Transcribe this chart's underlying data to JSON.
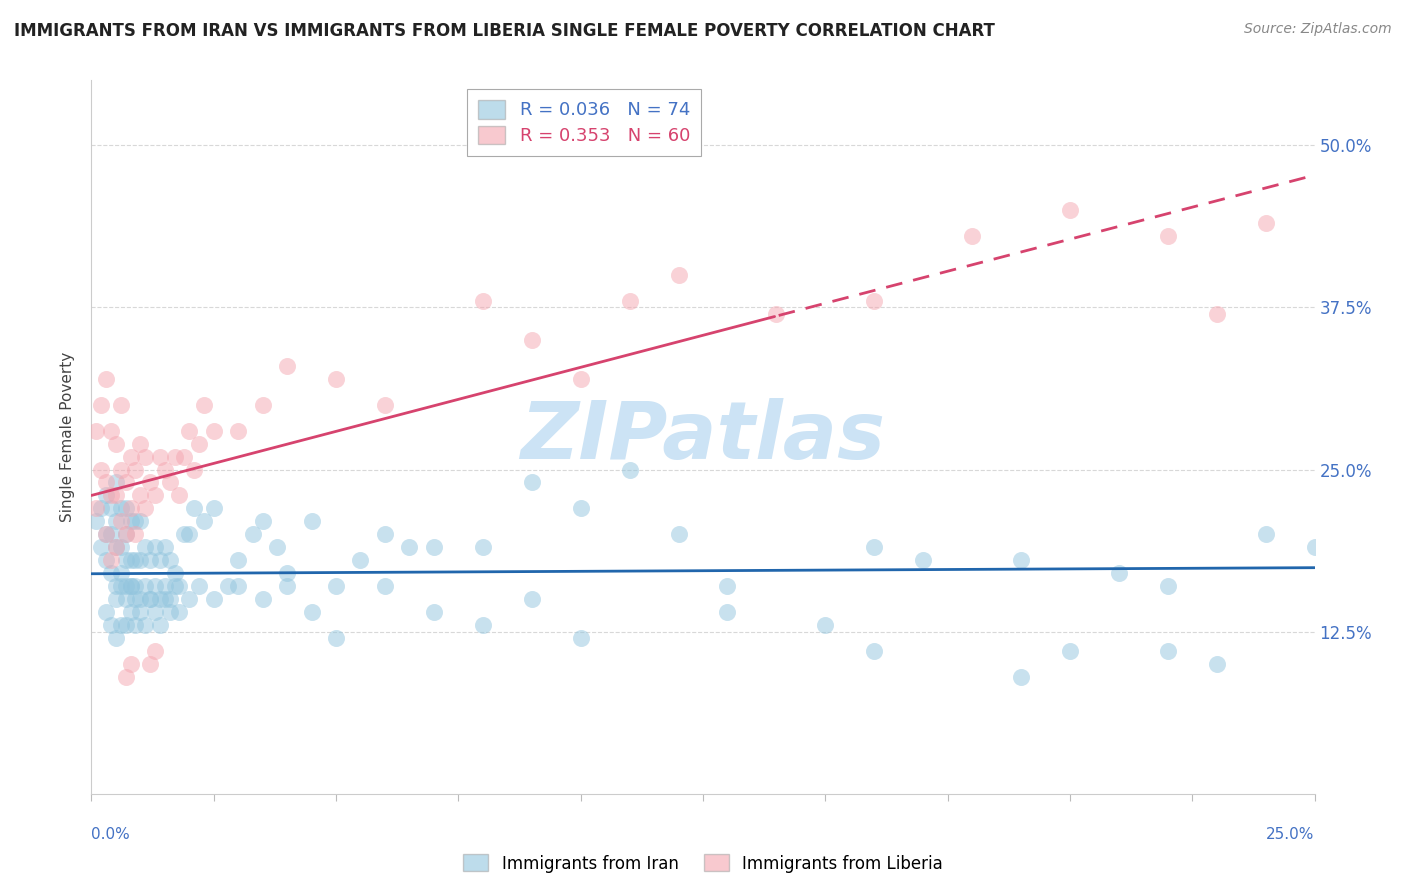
{
  "title": "IMMIGRANTS FROM IRAN VS IMMIGRANTS FROM LIBERIA SINGLE FEMALE POVERTY CORRELATION CHART",
  "source": "Source: ZipAtlas.com",
  "ylabel": "Single Female Poverty",
  "ytick_labels": [
    "12.5%",
    "25.0%",
    "37.5%",
    "50.0%"
  ],
  "ytick_values": [
    0.125,
    0.25,
    0.375,
    0.5
  ],
  "xlim": [
    0.0,
    0.25
  ],
  "ylim": [
    0.0,
    0.55
  ],
  "legend_iran": "R = 0.036   N = 74",
  "legend_liberia": "R = 0.353   N = 60",
  "iran_color": "#92c5de",
  "liberia_color": "#f4a6b0",
  "iran_line_color": "#2166ac",
  "liberia_line_color": "#d6436e",
  "iran_scatter_x": [
    0.001,
    0.002,
    0.002,
    0.003,
    0.003,
    0.003,
    0.004,
    0.004,
    0.004,
    0.005,
    0.005,
    0.005,
    0.005,
    0.006,
    0.006,
    0.006,
    0.007,
    0.007,
    0.007,
    0.007,
    0.008,
    0.008,
    0.008,
    0.009,
    0.009,
    0.009,
    0.01,
    0.01,
    0.01,
    0.011,
    0.011,
    0.012,
    0.012,
    0.013,
    0.013,
    0.014,
    0.014,
    0.015,
    0.015,
    0.016,
    0.016,
    0.017,
    0.018,
    0.019,
    0.02,
    0.021,
    0.023,
    0.025,
    0.028,
    0.03,
    0.033,
    0.035,
    0.038,
    0.04,
    0.045,
    0.05,
    0.055,
    0.06,
    0.065,
    0.07,
    0.08,
    0.09,
    0.1,
    0.11,
    0.12,
    0.13,
    0.15,
    0.16,
    0.17,
    0.19,
    0.2,
    0.21,
    0.22,
    0.24
  ],
  "iran_scatter_y": [
    0.21,
    0.19,
    0.22,
    0.18,
    0.2,
    0.23,
    0.17,
    0.2,
    0.22,
    0.16,
    0.19,
    0.21,
    0.24,
    0.17,
    0.19,
    0.22,
    0.16,
    0.18,
    0.2,
    0.22,
    0.16,
    0.18,
    0.21,
    0.16,
    0.18,
    0.21,
    0.15,
    0.18,
    0.21,
    0.16,
    0.19,
    0.15,
    0.18,
    0.16,
    0.19,
    0.15,
    0.18,
    0.16,
    0.19,
    0.15,
    0.18,
    0.17,
    0.16,
    0.2,
    0.2,
    0.22,
    0.21,
    0.22,
    0.16,
    0.18,
    0.2,
    0.21,
    0.19,
    0.17,
    0.21,
    0.16,
    0.18,
    0.2,
    0.19,
    0.19,
    0.19,
    0.24,
    0.22,
    0.25,
    0.2,
    0.16,
    0.13,
    0.19,
    0.18,
    0.18,
    0.11,
    0.17,
    0.16,
    0.2
  ],
  "iran_scatter_x_low": [
    0.003,
    0.004,
    0.005,
    0.005,
    0.006,
    0.006,
    0.007,
    0.007,
    0.008,
    0.008,
    0.009,
    0.009,
    0.01,
    0.011,
    0.012,
    0.013,
    0.014,
    0.015,
    0.016,
    0.017,
    0.018,
    0.02,
    0.022,
    0.025,
    0.03,
    0.035,
    0.04,
    0.045,
    0.05,
    0.06,
    0.07,
    0.08,
    0.09,
    0.1,
    0.13,
    0.16,
    0.19,
    0.22,
    0.23,
    0.25
  ],
  "iran_scatter_y_low": [
    0.14,
    0.13,
    0.12,
    0.15,
    0.13,
    0.16,
    0.13,
    0.15,
    0.14,
    0.16,
    0.13,
    0.15,
    0.14,
    0.13,
    0.15,
    0.14,
    0.13,
    0.15,
    0.14,
    0.16,
    0.14,
    0.15,
    0.16,
    0.15,
    0.16,
    0.15,
    0.16,
    0.14,
    0.12,
    0.16,
    0.14,
    0.13,
    0.15,
    0.12,
    0.14,
    0.11,
    0.09,
    0.11,
    0.1,
    0.19
  ],
  "liberia_scatter_x": [
    0.001,
    0.001,
    0.002,
    0.002,
    0.003,
    0.003,
    0.003,
    0.004,
    0.004,
    0.004,
    0.005,
    0.005,
    0.005,
    0.006,
    0.006,
    0.006,
    0.007,
    0.007,
    0.008,
    0.008,
    0.009,
    0.009,
    0.01,
    0.01,
    0.011,
    0.011,
    0.012,
    0.013,
    0.014,
    0.015,
    0.016,
    0.017,
    0.018,
    0.019,
    0.02,
    0.021,
    0.022,
    0.023,
    0.025,
    0.03,
    0.035,
    0.04,
    0.05,
    0.06,
    0.08,
    0.09,
    0.1,
    0.11,
    0.12,
    0.14,
    0.16,
    0.18,
    0.2,
    0.22,
    0.23,
    0.24,
    0.007,
    0.008,
    0.012,
    0.013
  ],
  "liberia_scatter_y": [
    0.22,
    0.28,
    0.25,
    0.3,
    0.2,
    0.24,
    0.32,
    0.18,
    0.23,
    0.28,
    0.19,
    0.23,
    0.27,
    0.21,
    0.25,
    0.3,
    0.2,
    0.24,
    0.22,
    0.26,
    0.2,
    0.25,
    0.23,
    0.27,
    0.22,
    0.26,
    0.24,
    0.23,
    0.26,
    0.25,
    0.24,
    0.26,
    0.23,
    0.26,
    0.28,
    0.25,
    0.27,
    0.3,
    0.28,
    0.28,
    0.3,
    0.33,
    0.32,
    0.3,
    0.38,
    0.35,
    0.32,
    0.38,
    0.4,
    0.37,
    0.38,
    0.43,
    0.45,
    0.43,
    0.37,
    0.44,
    0.09,
    0.1,
    0.1,
    0.11
  ],
  "background_color": "#ffffff",
  "grid_color": "#d8d8d8",
  "watermark_text": "ZIPatlas",
  "watermark_color": "#cce3f5"
}
